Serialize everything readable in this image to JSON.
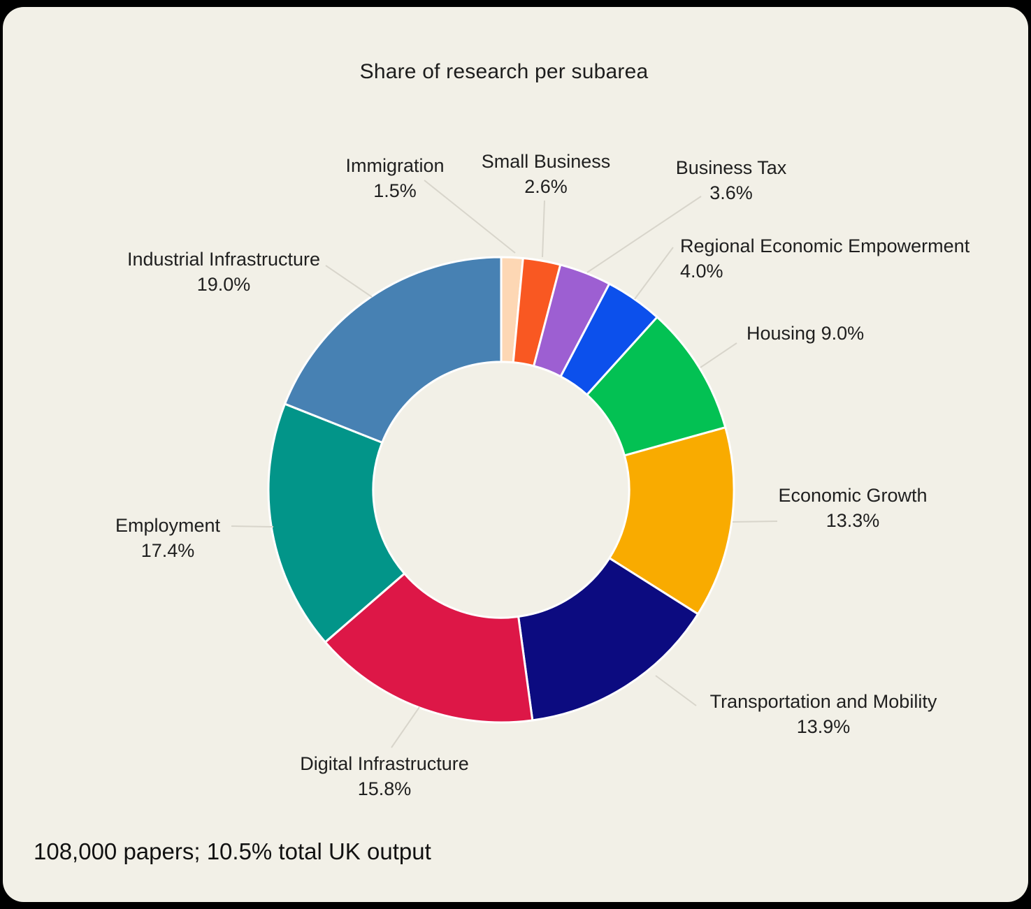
{
  "page": {
    "outer_background": "#000000",
    "panel_background": "#f2f0e7"
  },
  "chart_data": {
    "type": "pie",
    "title": "Share of research per subarea",
    "caption": "108,000 papers; 10.5% total UK output",
    "hole": 0.55,
    "direction": "clockwise",
    "start_angle_deg": 0,
    "labels_position": "outside",
    "legend": "none",
    "categories": [
      "Immigration",
      "Small Business",
      "Business Tax",
      "Regional Economic Empowerment",
      "Housing",
      "Economic Growth",
      "Transportation and Mobility",
      "Digital Infrastructure",
      "Employment",
      "Industrial Infrastructure"
    ],
    "values": [
      1.5,
      2.6,
      3.6,
      4.0,
      9.0,
      13.3,
      13.9,
      15.8,
      17.4,
      19.0
    ],
    "unit": "%",
    "colors": [
      "#fdd7b4",
      "#f95822",
      "#9d5fd2",
      "#0c50ec",
      "#03c153",
      "#f9ab00",
      "#0c0b80",
      "#dd1747",
      "#029589",
      "#4781b3"
    ],
    "slice_border_color": "#ffffff",
    "leader_line_color": "#d8d5cb",
    "label_color": "#1f1f1f"
  }
}
